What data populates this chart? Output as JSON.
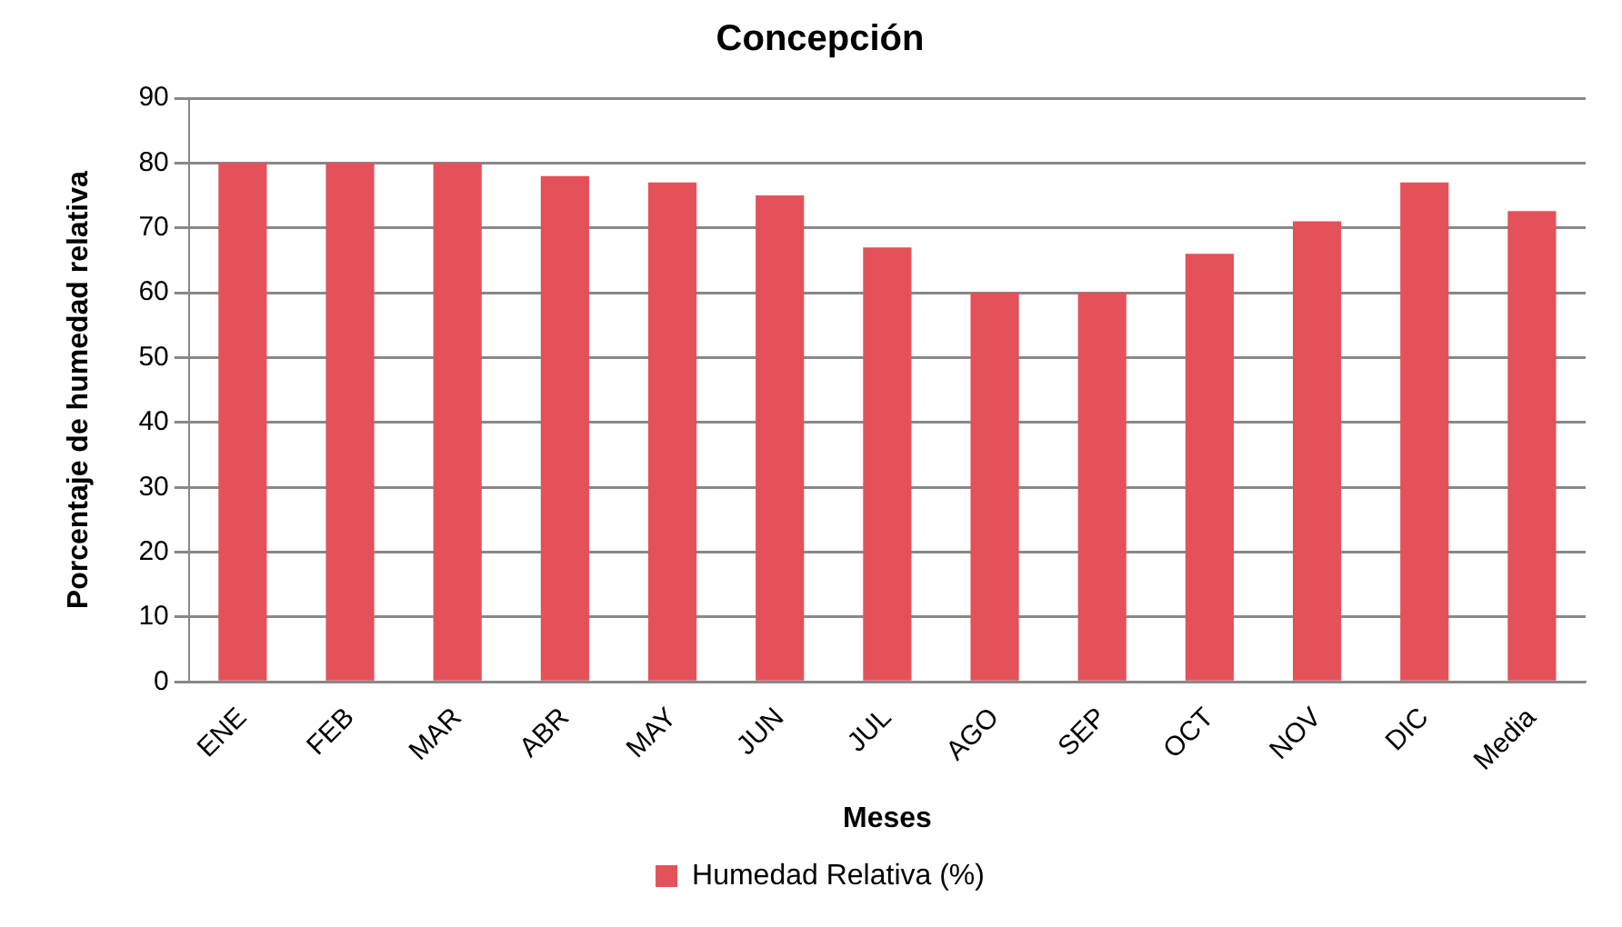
{
  "chart_data": {
    "type": "bar",
    "title": "Concepción",
    "xlabel": "Meses",
    "ylabel": "Porcentaje de humedad relativa",
    "categories": [
      "ENE",
      "FEB",
      "MAR",
      "ABR",
      "MAY",
      "JUN",
      "JUL",
      "AGO",
      "SEP",
      "OCT",
      "NOV",
      "DIC",
      "Media"
    ],
    "series": [
      {
        "name": "Humedad Relativa (%)",
        "color": "#e5515a",
        "values": [
          80,
          80,
          80,
          78,
          77,
          75,
          67,
          60,
          60,
          66,
          71,
          77,
          72.6
        ]
      }
    ],
    "ylim": [
      0,
      90
    ],
    "yticks": [
      0,
      10,
      20,
      30,
      40,
      50,
      60,
      70,
      80,
      90
    ],
    "grid": "y",
    "legend": "bottom"
  }
}
